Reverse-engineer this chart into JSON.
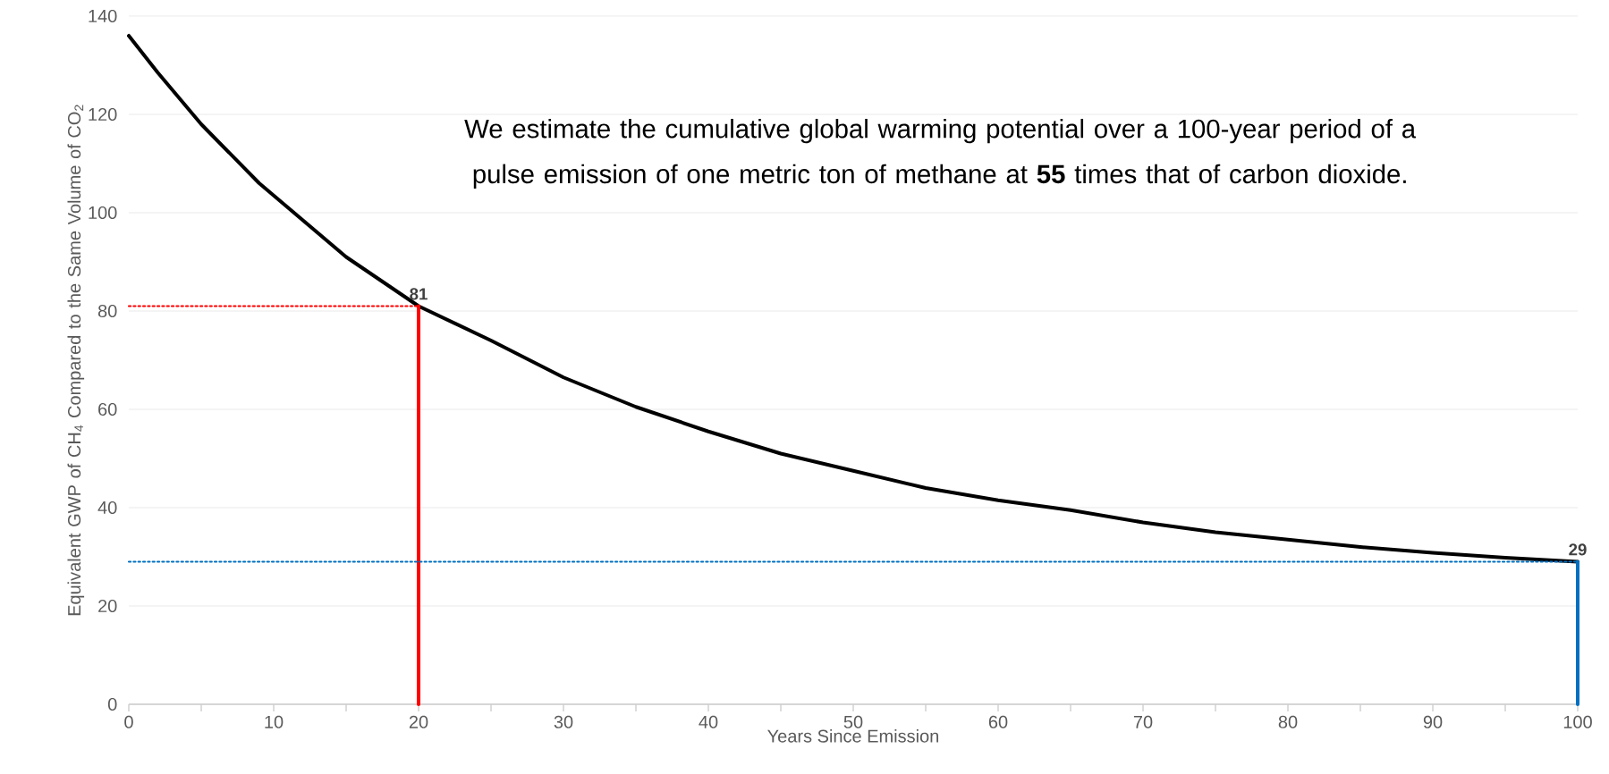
{
  "chart_data": {
    "type": "line",
    "xlabel": "Years Since Emission",
    "ylabel": "Equivalent GWP of CH$_{4}$ Compared to the Same Volume of CO$_{2}$",
    "x": [
      0,
      2,
      5,
      9,
      10,
      15,
      20,
      25,
      30,
      35,
      40,
      45,
      50,
      55,
      60,
      65,
      70,
      75,
      80,
      85,
      90,
      95,
      100
    ],
    "series": [
      {
        "color": "#000000",
        "line_style": "solid",
        "values": [
          136,
          128.5,
          118,
          106,
          103.5,
          91,
          81,
          74,
          66.5,
          60.5,
          55.5,
          51,
          47.5,
          44,
          41.5,
          39.5,
          37,
          35,
          33.5,
          32,
          30.8,
          29.8,
          29
        ]
      },
      {
        "type": "line",
        "color": "#ff0000",
        "line_style": "dotted",
        "x": [
          0,
          20
        ],
        "values": [
          81,
          81
        ]
      },
      {
        "type": "line",
        "color": "#ff0000",
        "line_style": "solid",
        "x": [
          20,
          20
        ],
        "values": [
          0,
          81
        ]
      },
      {
        "type": "line",
        "color": "#0070c0",
        "line_style": "dotted",
        "x": [
          0,
          100
        ],
        "values": [
          29,
          29
        ]
      },
      {
        "type": "line",
        "color": "#0070c0",
        "line_style": "solid",
        "x": [
          100,
          100
        ],
        "values": [
          0,
          29
        ]
      }
    ],
    "xlim": [
      0,
      100
    ],
    "xticks": [
      0,
      10,
      20,
      30,
      40,
      50,
      60,
      70,
      80,
      90,
      100
    ],
    "ylim": [
      0,
      140
    ],
    "yticks": [
      0,
      20,
      40,
      60,
      80,
      100,
      120,
      140
    ],
    "grid": "y",
    "annotations": [
      "We estimate the cumulative global warming potential over a 100-year period of a pulse emission of one metric ton of methane at **55** times that of carbon dioxide.",
      {
        "text": "81",
        "x": 20,
        "y": 81
      },
      {
        "text": "29",
        "x": 100,
        "y": 29
      }
    ]
  }
}
